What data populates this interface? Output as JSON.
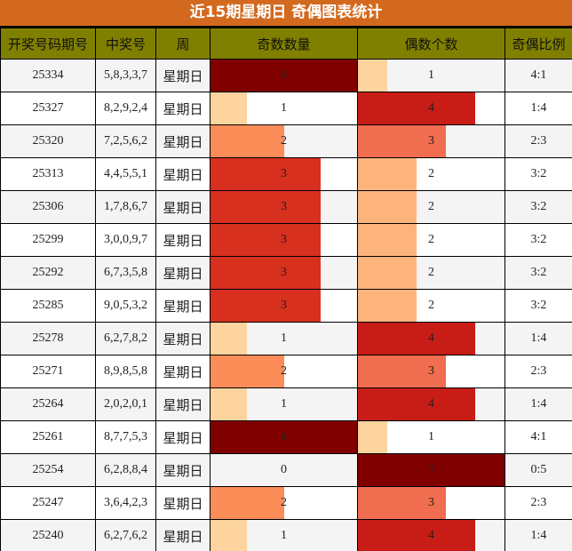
{
  "title": "近15期星期日 奇偶图表统计",
  "headers": [
    "开奖号码期号",
    "中奖号",
    "周",
    "奇数数量",
    "偶数个数",
    "奇偶比例"
  ],
  "odd_max": 4,
  "even_max": 5,
  "colors": {
    "title_bg": "#d2691e",
    "header_bg": "#808000",
    "level1": "#fdd49e",
    "level2_odd": "#fc8d59",
    "level2_even": "#fdb47c",
    "level3_odd": "#d7301f",
    "level3_even": "#f16d4f",
    "level4_odd": "#800000",
    "level4_even": "#c81d16",
    "level5": "#800000"
  },
  "rows": [
    {
      "issue": "25334",
      "numbers": "5,8,3,3,7",
      "week": "星期日",
      "odd": 4,
      "even": 1,
      "ratio": "4:1"
    },
    {
      "issue": "25327",
      "numbers": "8,2,9,2,4",
      "week": "星期日",
      "odd": 1,
      "even": 4,
      "ratio": "1:4"
    },
    {
      "issue": "25320",
      "numbers": "7,2,5,6,2",
      "week": "星期日",
      "odd": 2,
      "even": 3,
      "ratio": "2:3"
    },
    {
      "issue": "25313",
      "numbers": "4,4,5,5,1",
      "week": "星期日",
      "odd": 3,
      "even": 2,
      "ratio": "3:2"
    },
    {
      "issue": "25306",
      "numbers": "1,7,8,6,7",
      "week": "星期日",
      "odd": 3,
      "even": 2,
      "ratio": "3:2"
    },
    {
      "issue": "25299",
      "numbers": "3,0,0,9,7",
      "week": "星期日",
      "odd": 3,
      "even": 2,
      "ratio": "3:2"
    },
    {
      "issue": "25292",
      "numbers": "6,7,3,5,8",
      "week": "星期日",
      "odd": 3,
      "even": 2,
      "ratio": "3:2"
    },
    {
      "issue": "25285",
      "numbers": "9,0,5,3,2",
      "week": "星期日",
      "odd": 3,
      "even": 2,
      "ratio": "3:2"
    },
    {
      "issue": "25278",
      "numbers": "6,2,7,8,2",
      "week": "星期日",
      "odd": 1,
      "even": 4,
      "ratio": "1:4"
    },
    {
      "issue": "25271",
      "numbers": "8,9,8,5,8",
      "week": "星期日",
      "odd": 2,
      "even": 3,
      "ratio": "2:3"
    },
    {
      "issue": "25264",
      "numbers": "2,0,2,0,1",
      "week": "星期日",
      "odd": 1,
      "even": 4,
      "ratio": "1:4"
    },
    {
      "issue": "25261",
      "numbers": "8,7,7,5,3",
      "week": "星期日",
      "odd": 4,
      "even": 1,
      "ratio": "4:1"
    },
    {
      "issue": "25254",
      "numbers": "6,2,8,8,4",
      "week": "星期日",
      "odd": 0,
      "even": 5,
      "ratio": "0:5"
    },
    {
      "issue": "25247",
      "numbers": "3,6,4,2,3",
      "week": "星期日",
      "odd": 2,
      "even": 3,
      "ratio": "2:3"
    },
    {
      "issue": "25240",
      "numbers": "6,2,7,6,2",
      "week": "星期日",
      "odd": 1,
      "even": 4,
      "ratio": "1:4"
    }
  ]
}
